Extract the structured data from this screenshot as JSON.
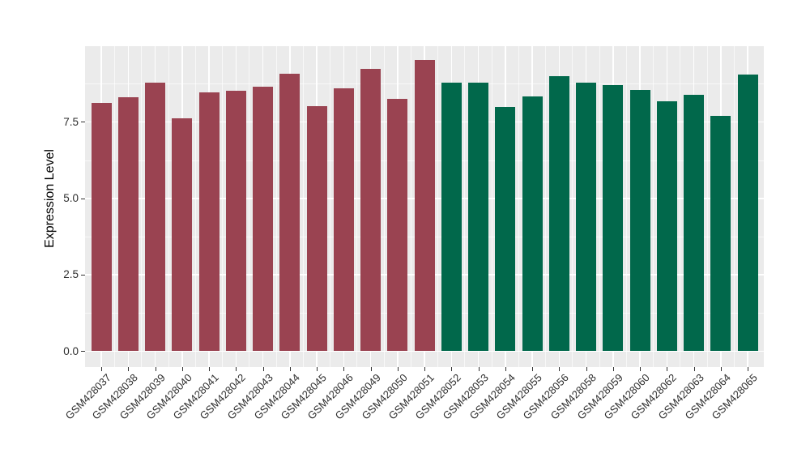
{
  "figure": {
    "background_color": "#FFFFFF",
    "panel_background_color": "#EBEBEB",
    "grid_color": "#FFFFFF",
    "tick_mark_color": "#333333",
    "axis_text_color": "#2E2E2E",
    "axis_title_color": "#000000"
  },
  "chart_data": {
    "type": "bar",
    "title": "",
    "xlabel": "",
    "ylabel": "Expression Level",
    "ylim": [
      0,
      9.98
    ],
    "yticks_major": [
      0.0,
      2.5,
      5.0,
      7.5
    ],
    "yticks_minor": [
      1.25,
      3.75,
      6.25,
      8.75
    ],
    "grid": true,
    "legend_position": "none",
    "x_tick_angle_deg": 45,
    "group_colors": {
      "group1": "#9A4351",
      "group2": "#01684B"
    },
    "categories": [
      "GSM428037",
      "GSM428038",
      "GSM428039",
      "GSM428040",
      "GSM428041",
      "GSM428042",
      "GSM428043",
      "GSM428044",
      "GSM428045",
      "GSM428046",
      "GSM428049",
      "GSM428050",
      "GSM428051",
      "GSM428052",
      "GSM428053",
      "GSM428054",
      "GSM428055",
      "GSM428056",
      "GSM428058",
      "GSM428059",
      "GSM428060",
      "GSM428062",
      "GSM428063",
      "GSM428064",
      "GSM428065"
    ],
    "bars": [
      {
        "label": "GSM428037",
        "value": 8.11,
        "group": "group1"
      },
      {
        "label": "GSM428038",
        "value": 8.3,
        "group": "group1"
      },
      {
        "label": "GSM428039",
        "value": 8.78,
        "group": "group1"
      },
      {
        "label": "GSM428040",
        "value": 7.61,
        "group": "group1"
      },
      {
        "label": "GSM428041",
        "value": 8.47,
        "group": "group1"
      },
      {
        "label": "GSM428042",
        "value": 8.52,
        "group": "group1"
      },
      {
        "label": "GSM428043",
        "value": 8.65,
        "group": "group1"
      },
      {
        "label": "GSM428044",
        "value": 9.07,
        "group": "group1"
      },
      {
        "label": "GSM428045",
        "value": 8.01,
        "group": "group1"
      },
      {
        "label": "GSM428046",
        "value": 8.59,
        "group": "group1"
      },
      {
        "label": "GSM428049",
        "value": 9.23,
        "group": "group1"
      },
      {
        "label": "GSM428050",
        "value": 8.25,
        "group": "group1"
      },
      {
        "label": "GSM428051",
        "value": 9.53,
        "group": "group1"
      },
      {
        "label": "GSM428052",
        "value": 8.8,
        "group": "group2"
      },
      {
        "label": "GSM428053",
        "value": 8.78,
        "group": "group2"
      },
      {
        "label": "GSM428054",
        "value": 8.0,
        "group": "group2"
      },
      {
        "label": "GSM428055",
        "value": 8.34,
        "group": "group2"
      },
      {
        "label": "GSM428056",
        "value": 9.0,
        "group": "group2"
      },
      {
        "label": "GSM428058",
        "value": 8.78,
        "group": "group2"
      },
      {
        "label": "GSM428059",
        "value": 8.72,
        "group": "group2"
      },
      {
        "label": "GSM428060",
        "value": 8.56,
        "group": "group2"
      },
      {
        "label": "GSM428062",
        "value": 8.18,
        "group": "group2"
      },
      {
        "label": "GSM428063",
        "value": 8.38,
        "group": "group2"
      },
      {
        "label": "GSM428064",
        "value": 7.71,
        "group": "group2"
      },
      {
        "label": "GSM428065",
        "value": 9.06,
        "group": "group2"
      }
    ]
  }
}
